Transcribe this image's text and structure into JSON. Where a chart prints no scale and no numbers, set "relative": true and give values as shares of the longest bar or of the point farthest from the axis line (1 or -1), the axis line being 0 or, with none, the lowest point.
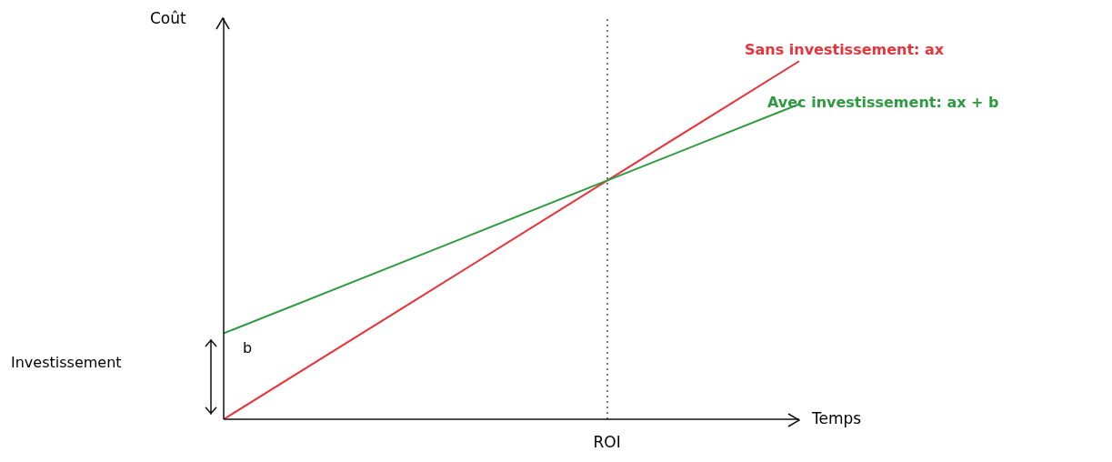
{
  "chart_data": {
    "type": "line",
    "relative": true,
    "xlabel": "Temps",
    "ylabel": "Coût",
    "categories": [
      null,
      null,
      null,
      null
    ],
    "series": [
      {
        "name": "Sans investissement: ax",
        "color": "#e8333a",
        "values": [
          0,
          0.333,
          0.667,
          1
        ]
      },
      {
        "name": "Avec investissement: ax + b",
        "color": "#2e9a3e",
        "values": [
          0.24,
          0.453,
          0.667,
          0.88
        ]
      }
    ],
    "annotations": [
      "Investissement",
      "b",
      "ROI"
    ],
    "marker": "none",
    "line_style": "solid"
  }
}
